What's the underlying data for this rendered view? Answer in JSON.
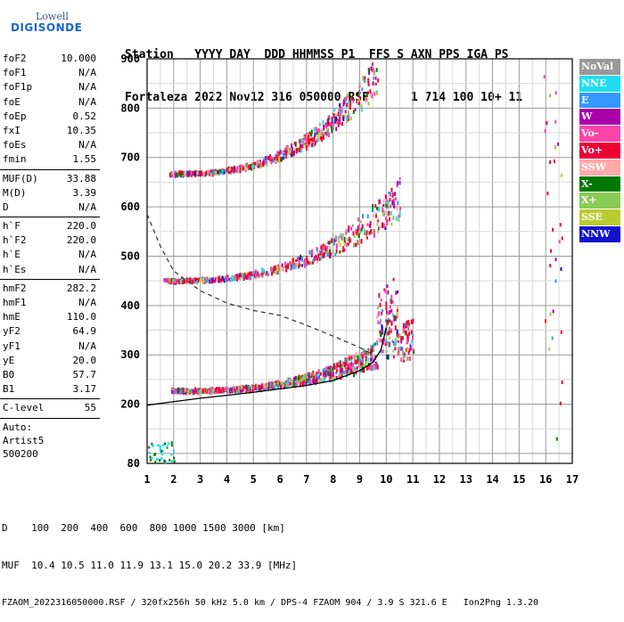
{
  "logo": {
    "line1": "Lowell",
    "line2": "DIGISONDE"
  },
  "header": {
    "row1": "Station   YYYY DAY  DDD HHMMSS P1  FFS S AXN PPS IGA PS",
    "row2": "Fortaleza 2022 Nov12 316 050000 RSF      1 714 100 10+ 11"
  },
  "params": [
    {
      "group": [
        {
          "label": "foF2",
          "value": "10.000"
        },
        {
          "label": "foF1",
          "value": "N/A"
        },
        {
          "label": "foF1p",
          "value": "N/A"
        },
        {
          "label": "foE",
          "value": "N/A"
        },
        {
          "label": "foEp",
          "value": "0.52"
        },
        {
          "label": "fxI",
          "value": "10.35"
        },
        {
          "label": "foEs",
          "value": "N/A"
        },
        {
          "label": "fmin",
          "value": "1.55"
        }
      ]
    },
    {
      "group": [
        {
          "label": "MUF(D)",
          "value": "33.88"
        },
        {
          "label": "M(D)",
          "value": "3.39"
        },
        {
          "label": "D",
          "value": "N/A"
        }
      ]
    },
    {
      "group": [
        {
          "label": "h`F",
          "value": "220.0"
        },
        {
          "label": "h`F2",
          "value": "220.0"
        },
        {
          "label": "h`E",
          "value": "N/A"
        },
        {
          "label": "h`Es",
          "value": "N/A"
        }
      ]
    },
    {
      "group": [
        {
          "label": "hmF2",
          "value": "282.2"
        },
        {
          "label": "hmF1",
          "value": "N/A"
        },
        {
          "label": "hmE",
          "value": "110.0"
        },
        {
          "label": "yF2",
          "value": "64.9"
        },
        {
          "label": "yF1",
          "value": "N/A"
        },
        {
          "label": "yE",
          "value": "20.0"
        },
        {
          "label": "B0",
          "value": "57.7"
        },
        {
          "label": "B1",
          "value": "3.17"
        }
      ]
    },
    {
      "group": [
        {
          "label": "C-level",
          "value": "55"
        }
      ]
    }
  ],
  "auto": [
    "Auto:",
    "Artist5",
    "500200"
  ],
  "legend": [
    {
      "label": "NoVal",
      "color": "#999999"
    },
    {
      "label": "NNE",
      "color": "#22ddf0"
    },
    {
      "label": "E",
      "color": "#3399ff"
    },
    {
      "label": "W",
      "color": "#aa00aa"
    },
    {
      "label": "Vo-",
      "color": "#ff44aa"
    },
    {
      "label": "Vo+",
      "color": "#ee0033"
    },
    {
      "label": "SSW",
      "color": "#ffaaaa"
    },
    {
      "label": "X-",
      "color": "#007700"
    },
    {
      "label": "X+",
      "color": "#88cc55"
    },
    {
      "label": "SSE",
      "color": "#bbcc33"
    },
    {
      "label": "NNW",
      "color": "#1111cc"
    }
  ],
  "footer": {
    "line1": "D    100  200  400  600  800 1000 1500 3000 [km]",
    "line2": "MUF  10.4 10.5 11.0 11.9 13.1 15.0 20.2 33.9 [MHz]",
    "line3": "FZAOM_2022316050000.RSF / 320fx256h 50 kHz 5.0 km / DPS-4 FZAOM 904 / 3.9 S 321.6 E   Ion2Png 1.3.20"
  },
  "chart_data": {
    "type": "scatter",
    "xlim": [
      1,
      17
    ],
    "ylim": [
      80,
      900
    ],
    "xticks": [
      1,
      2,
      3,
      4,
      5,
      6,
      7,
      8,
      9,
      10,
      11,
      12,
      13,
      14,
      15,
      16,
      17
    ],
    "yticks": [
      80,
      200,
      300,
      400,
      500,
      600,
      700,
      800,
      900
    ],
    "xminor_step": 0.5,
    "yminor_step": 50,
    "grid": true,
    "echo_traces": [
      {
        "name": "1st hop",
        "x_from": 1.9,
        "x_to": 11.0,
        "h_start": 225,
        "h_end": 320,
        "h_spike": 460,
        "spike_at": 10.0
      },
      {
        "name": "2nd hop",
        "x_from": 1.6,
        "x_to": 10.5,
        "h_start": 448,
        "h_end": 600
      },
      {
        "name": "3rd hop",
        "x_from": 1.8,
        "x_to": 9.7,
        "h_start": 665,
        "h_end": 850
      }
    ],
    "true_height_profile": [
      [
        1,
        198
      ],
      [
        2,
        205
      ],
      [
        3,
        212
      ],
      [
        4,
        218
      ],
      [
        5,
        224
      ],
      [
        6,
        231
      ],
      [
        7,
        238
      ],
      [
        8,
        248
      ],
      [
        9,
        268
      ],
      [
        9.5,
        285
      ],
      [
        9.8,
        310
      ],
      [
        10.0,
        355
      ]
    ],
    "muf_curve": [
      [
        1,
        585
      ],
      [
        1.5,
        520
      ],
      [
        2,
        470
      ],
      [
        3,
        430
      ],
      [
        4,
        405
      ],
      [
        5,
        390
      ],
      [
        6,
        380
      ],
      [
        7,
        360
      ],
      [
        8,
        338
      ],
      [
        9,
        315
      ],
      [
        9.5,
        300
      ]
    ]
  }
}
